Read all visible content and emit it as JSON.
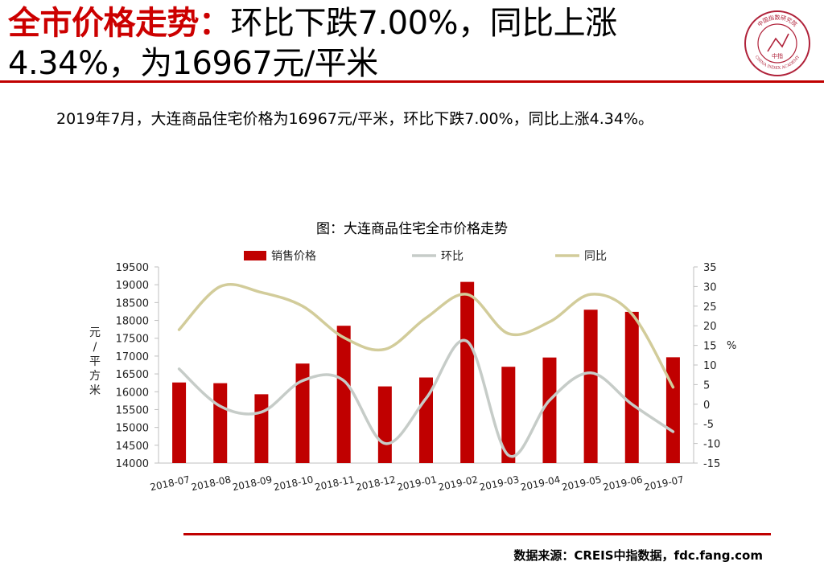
{
  "header": {
    "title_lead": "全市价格走势：",
    "title_line1_rest": "环比下跌7.00%，同比上涨",
    "title_line2": "4.34%，为16967元/平米"
  },
  "logo": {
    "top_text": "中国指数研究院",
    "bottom_text": "CHINA INDEX ACADEMY",
    "mark_text": "中指"
  },
  "summary": "2019年7月，大连商品住宅价格为16967元/平米，环比下跌7.00%，同比上涨4.34%。",
  "chart_data": {
    "type": "bar",
    "title": "图：大连商品住宅全市价格走势",
    "categories": [
      "2018-07",
      "2018-08",
      "2018-09",
      "2018-10",
      "2018-11",
      "2018-12",
      "2019-01",
      "2019-02",
      "2019-03",
      "2019-04",
      "2019-05",
      "2019-06",
      "2019-07"
    ],
    "series": [
      {
        "name": "销售价格",
        "type": "bar",
        "axis": "left",
        "color": "#c00000",
        "values": [
          16260,
          16240,
          15930,
          16790,
          17850,
          16150,
          16400,
          19080,
          16700,
          16960,
          18300,
          18240,
          16967
        ]
      },
      {
        "name": "环比",
        "type": "line",
        "axis": "right",
        "color": "#c6ccc8",
        "values": [
          9,
          -0.5,
          -2,
          6,
          6,
          -10,
          1.5,
          16,
          -13,
          1,
          8,
          0,
          -7
        ]
      },
      {
        "name": "同比",
        "type": "line",
        "axis": "right",
        "color": "#d2cc9a",
        "values": [
          19,
          30,
          28.5,
          25,
          17,
          14,
          22,
          28,
          18,
          21,
          28,
          23,
          4.34
        ]
      }
    ],
    "ylabel": "元/平方米",
    "ylim": [
      14000,
      19500
    ],
    "yticks": [
      "19500",
      "19000",
      "18500",
      "18000",
      "17500",
      "17000",
      "16500",
      "16000",
      "15500",
      "15000",
      "14500",
      "14000"
    ],
    "y2label": "%",
    "y2lim": [
      -15,
      35
    ],
    "y2ticks": [
      "35",
      "30",
      "25",
      "20",
      "15",
      "10",
      "5",
      "0",
      "-5",
      "-10",
      "-15"
    ],
    "legend_position": "top",
    "grid": false
  },
  "footer": {
    "source": "数据来源：CREIS中指数据，fdc.fang.com"
  }
}
